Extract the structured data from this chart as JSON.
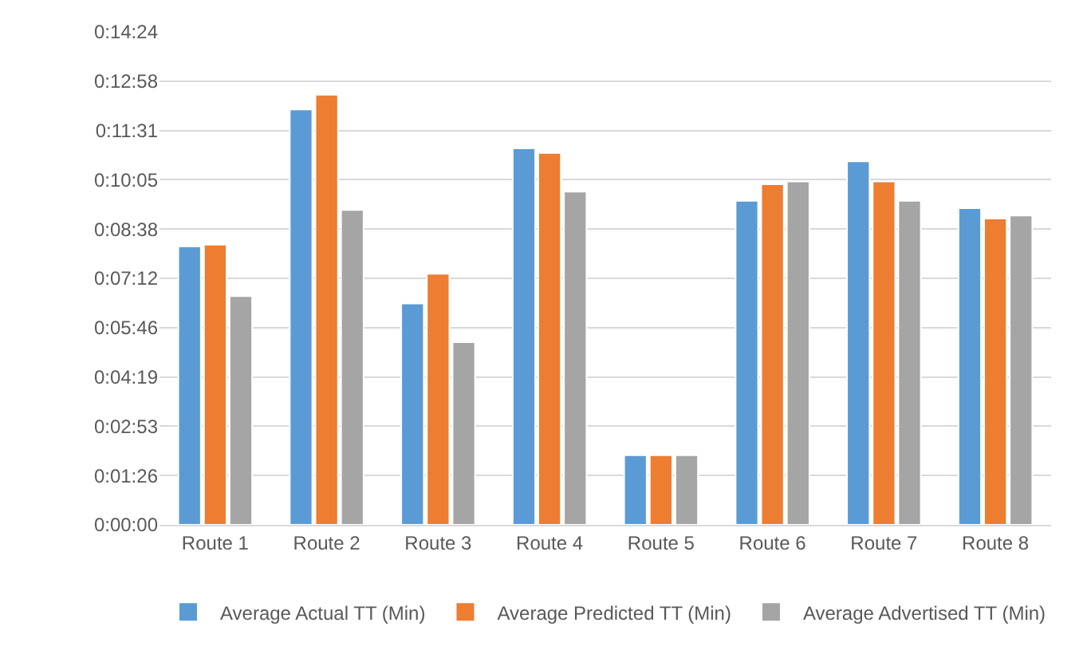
{
  "chart_data": {
    "type": "bar",
    "categories": [
      "Route 1",
      "Route 2",
      "Route 3",
      "Route 4",
      "Route 5",
      "Route 6",
      "Route 7",
      "Route 8"
    ],
    "series": [
      {
        "name": "Average Actual TT (Min)",
        "color": "#5b9bd5",
        "values": [
          488,
          728,
          388,
          660,
          122,
          568,
          637,
          555
        ]
      },
      {
        "name": "Average Predicted TT (Min)",
        "color": "#ed7d31",
        "values": [
          491,
          754,
          440,
          652,
          122,
          597,
          602,
          537
        ]
      },
      {
        "name": "Average Advertised TT (Min)",
        "color": "#a5a5a5",
        "values": [
          401,
          552,
          320,
          584,
          122,
          602,
          568,
          542
        ]
      }
    ],
    "ylim": [
      0,
      864
    ],
    "yticks": [
      {
        "value": 0,
        "label": "0:00:00"
      },
      {
        "value": 86.4,
        "label": "0:01:26"
      },
      {
        "value": 172.8,
        "label": "0:02:53"
      },
      {
        "value": 259.2,
        "label": "0:04:19"
      },
      {
        "value": 345.6,
        "label": "0:05:46"
      },
      {
        "value": 432,
        "label": "0:07:12"
      },
      {
        "value": 518.4,
        "label": "0:08:38"
      },
      {
        "value": 604.8,
        "label": "0:10:05"
      },
      {
        "value": 691.2,
        "label": "0:11:31"
      },
      {
        "value": 777.6,
        "label": "0:12:58"
      },
      {
        "value": 864,
        "label": "0:14:24"
      }
    ],
    "grid": "y",
    "legend": "bottom"
  }
}
